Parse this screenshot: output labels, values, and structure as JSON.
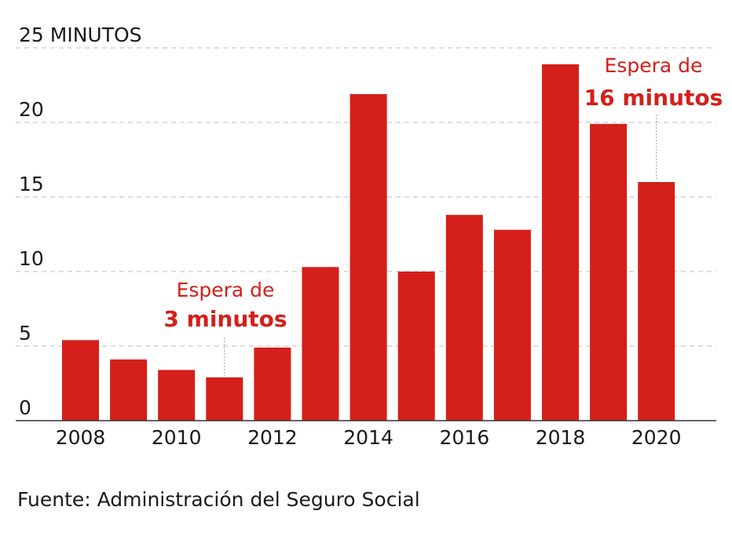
{
  "chart_data": {
    "type": "bar",
    "title": "",
    "xlabel": "",
    "ylabel": "25 MINUTOS",
    "ylim": [
      0,
      25
    ],
    "y_ticks": [
      "0",
      "5",
      "10",
      "15",
      "20",
      "25 MINUTOS"
    ],
    "y_tick_values": [
      0,
      5,
      10,
      15,
      20,
      25
    ],
    "categories": [
      "2008",
      "2009",
      "2010",
      "2011",
      "2012",
      "2013",
      "2014",
      "2015",
      "2016",
      "2017",
      "2018",
      "2019",
      "2020"
    ],
    "x_tick_labels": [
      "2008",
      "",
      "2010",
      "",
      "2012",
      "",
      "2014",
      "",
      "2016",
      "",
      "2018",
      "",
      "2020"
    ],
    "values": [
      5.4,
      4.1,
      3.4,
      2.9,
      4.9,
      10.3,
      21.9,
      10.0,
      13.8,
      12.8,
      23.9,
      19.9,
      16.0
    ],
    "bar_color": "#d41f1a",
    "grid": true,
    "annotations": [
      {
        "line1": "Espera de",
        "line2": "3 minutos",
        "category": "2011"
      },
      {
        "line1": "Espera de",
        "line2": "16 minutos",
        "category": "2020"
      }
    ]
  },
  "source": "Fuente: Administración del Seguro Social"
}
